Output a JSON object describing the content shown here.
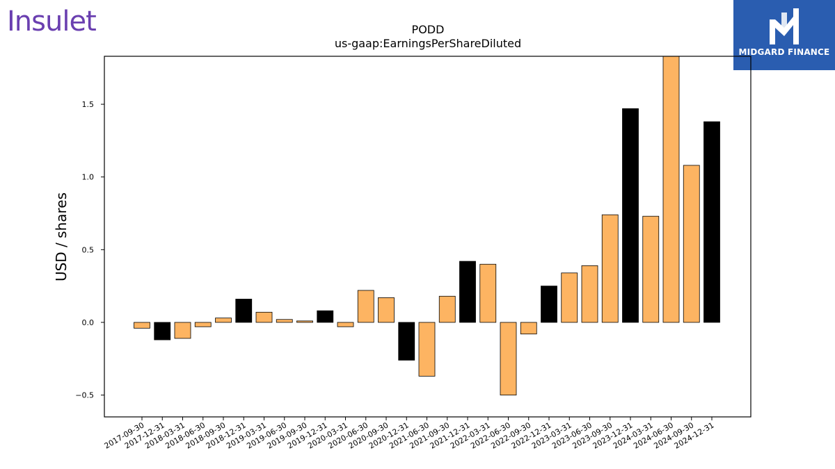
{
  "logos": {
    "left_text": "Insulet",
    "right_text": "MIDGARD FINANCE"
  },
  "chart_data": {
    "type": "bar",
    "title": "PODD",
    "subtitle": "us-gaap:EarningsPerShareDiluted",
    "xlabel": "",
    "ylabel": "USD / shares",
    "ylim": [
      -0.65,
      1.83
    ],
    "yticks": [
      -0.5,
      0.0,
      0.5,
      1.0,
      1.5
    ],
    "ytick_labels": [
      "−0.5",
      "0.0",
      "0.5",
      "1.0",
      "1.5"
    ],
    "grid": false,
    "categories": [
      "2017-09-30",
      "2017-12-31",
      "2018-03-31",
      "2018-06-30",
      "2018-09-30",
      "2018-12-31",
      "2019-03-31",
      "2019-06-30",
      "2019-09-30",
      "2019-12-31",
      "2020-03-31",
      "2020-06-30",
      "2020-09-30",
      "2020-12-31",
      "2021-06-30",
      "2021-09-30",
      "2021-12-31",
      "2022-03-31",
      "2022-06-30",
      "2022-09-30",
      "2022-12-31",
      "2023-03-31",
      "2023-06-30",
      "2023-09-30",
      "2023-12-31",
      "2024-03-31",
      "2024-06-30",
      "2024-09-30",
      "2024-12-31"
    ],
    "values": [
      -0.04,
      -0.12,
      -0.11,
      -0.03,
      0.03,
      0.16,
      0.07,
      0.02,
      0.01,
      0.08,
      -0.03,
      0.22,
      0.17,
      -0.26,
      -0.37,
      0.18,
      0.42,
      0.4,
      -0.5,
      -0.08,
      0.25,
      0.34,
      0.39,
      0.74,
      1.47,
      0.73,
      1.9,
      1.08,
      1.38
    ],
    "bar_colors": [
      "#fdb462",
      "#000000",
      "#fdb462",
      "#fdb462",
      "#fdb462",
      "#000000",
      "#fdb462",
      "#fdb462",
      "#fdb462",
      "#000000",
      "#fdb462",
      "#fdb462",
      "#fdb462",
      "#000000",
      "#fdb462",
      "#fdb462",
      "#000000",
      "#fdb462",
      "#fdb462",
      "#fdb462",
      "#000000",
      "#fdb462",
      "#fdb462",
      "#fdb462",
      "#000000",
      "#fdb462",
      "#fdb462",
      "#fdb462",
      "#000000"
    ]
  }
}
